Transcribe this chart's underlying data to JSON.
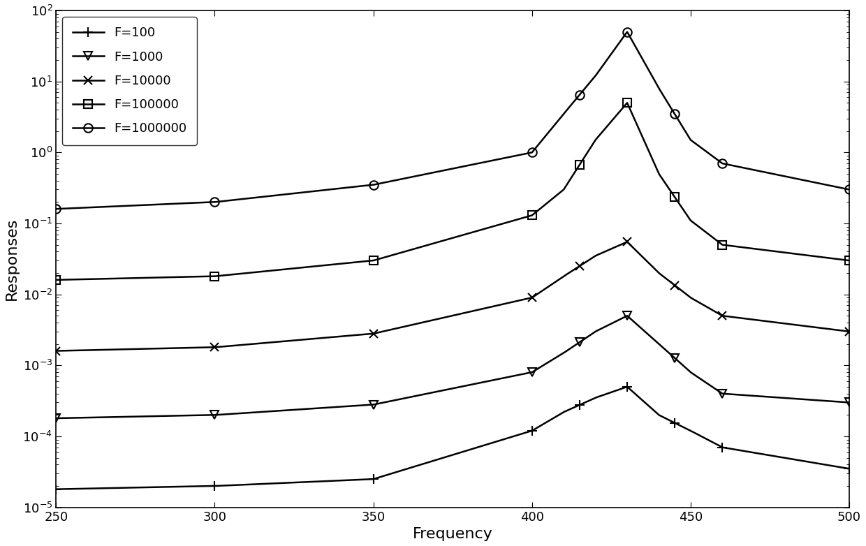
{
  "xlabel": "Frequency",
  "ylabel": "Responses",
  "xlim": [
    250,
    500
  ],
  "ylim": [
    1e-05,
    100.0
  ],
  "cf": 430,
  "x_ticks": [
    250,
    300,
    350,
    400,
    450,
    500
  ],
  "line_color": "#000000",
  "line_width": 1.8,
  "background_color": "#ffffff",
  "series": [
    {
      "label": "F=100",
      "marker": "+",
      "markersize": 10,
      "markeredgewidth": 1.5,
      "y_250": 1.8e-05,
      "y_300": 2e-05,
      "y_350": 2.5e-05,
      "y_400": 0.00012,
      "y_410": 0.00022,
      "y_420": 0.00035,
      "y_cf": 0.0005,
      "y_440": 0.0002,
      "y_450": 0.00012,
      "y_460": 7e-05,
      "y_500": 3.5e-05
    },
    {
      "label": "F=1000",
      "marker": "v",
      "markersize": 9,
      "markeredgewidth": 1.5,
      "y_250": 0.00018,
      "y_300": 0.0002,
      "y_350": 0.00028,
      "y_400": 0.0008,
      "y_410": 0.0015,
      "y_420": 0.003,
      "y_cf": 0.005,
      "y_440": 0.002,
      "y_450": 0.0008,
      "y_460": 0.0004,
      "y_500": 0.0003
    },
    {
      "label": "F=10000",
      "marker": "x",
      "markersize": 9,
      "markeredgewidth": 1.5,
      "y_250": 0.0016,
      "y_300": 0.0018,
      "y_350": 0.0028,
      "y_400": 0.009,
      "y_410": 0.018,
      "y_420": 0.035,
      "y_cf": 0.055,
      "y_440": 0.02,
      "y_450": 0.009,
      "y_460": 0.005,
      "y_500": 0.003
    },
    {
      "label": "F=100000",
      "marker": "s",
      "markersize": 8,
      "markeredgewidth": 1.5,
      "y_250": 0.016,
      "y_300": 0.018,
      "y_350": 0.03,
      "y_400": 0.13,
      "y_410": 0.3,
      "y_420": 1.5,
      "y_cf": 5.0,
      "y_440": 0.5,
      "y_450": 0.11,
      "y_460": 0.05,
      "y_500": 0.03
    },
    {
      "label": "F=1000000",
      "marker": "o",
      "markersize": 9,
      "markeredgewidth": 1.5,
      "y_250": 0.16,
      "y_300": 0.2,
      "y_350": 0.35,
      "y_400": 1.0,
      "y_410": 3.5,
      "y_420": 12.0,
      "y_cf": 50.0,
      "y_440": 8.0,
      "y_450": 1.5,
      "y_460": 0.7,
      "y_500": 0.3
    }
  ]
}
